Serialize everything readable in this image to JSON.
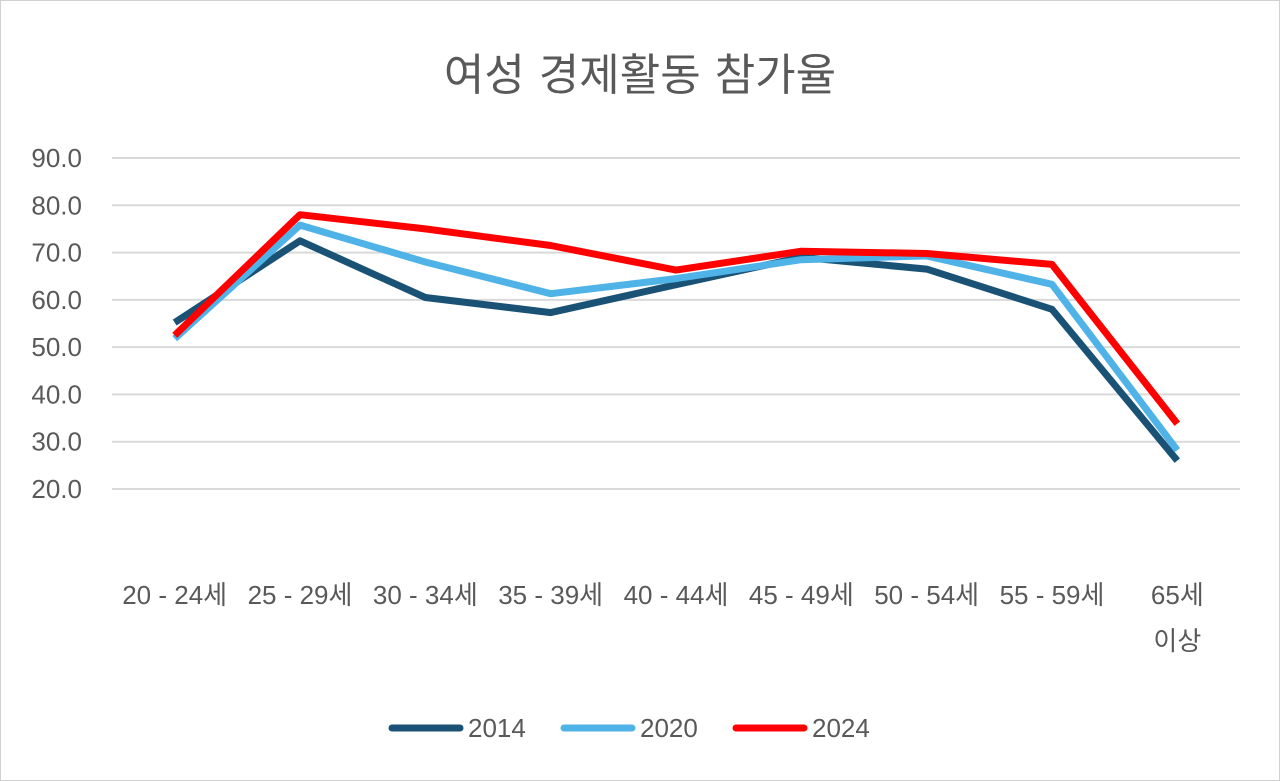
{
  "chart_data": {
    "type": "line",
    "title": "여성 경제활동 참가율",
    "categories": [
      [
        "20 - 24세"
      ],
      [
        "25 - 29세"
      ],
      [
        "30 - 34세"
      ],
      [
        "35 - 39세"
      ],
      [
        "40 - 44세"
      ],
      [
        "45 - 49세"
      ],
      [
        "50 - 54세"
      ],
      [
        "55 - 59세"
      ],
      [
        "65세",
        "이상"
      ]
    ],
    "series": [
      {
        "name": "2014",
        "color": "#1a5276",
        "values": [
          55.2,
          72.5,
          60.5,
          57.3,
          63.2,
          69.0,
          66.5,
          58.0,
          26.0
        ]
      },
      {
        "name": "2020",
        "color": "#4fb3e8",
        "values": [
          51.8,
          75.8,
          68.0,
          61.3,
          64.5,
          68.5,
          69.3,
          63.3,
          28.2
        ]
      },
      {
        "name": "2024",
        "color": "#ff0000",
        "values": [
          52.5,
          78.0,
          75.0,
          71.5,
          66.3,
          70.3,
          69.8,
          67.5,
          33.8
        ]
      }
    ],
    "yticks": [
      "20.0",
      "30.0",
      "40.0",
      "50.0",
      "60.0",
      "70.0",
      "80.0",
      "90.0"
    ],
    "ylim": [
      20,
      90
    ],
    "grid": true,
    "legend": "bottom",
    "xlabel": "",
    "ylabel": ""
  }
}
